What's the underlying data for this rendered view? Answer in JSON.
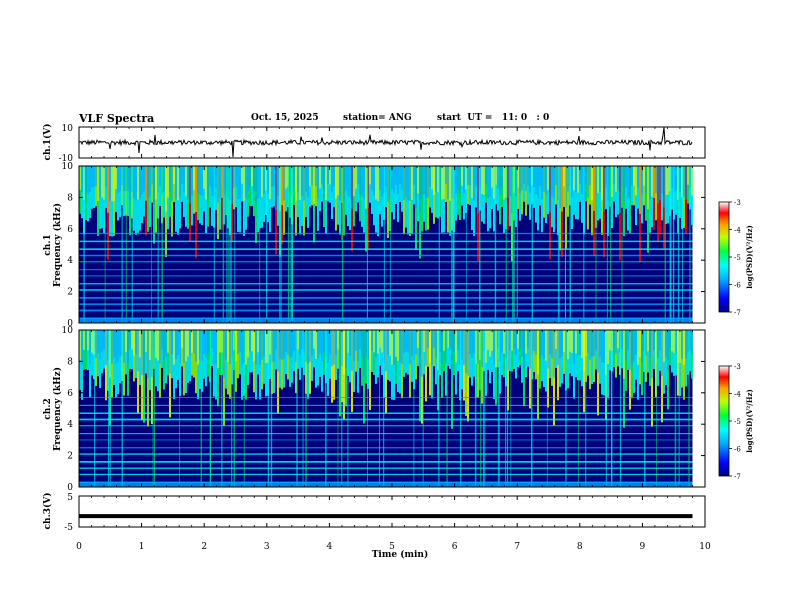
{
  "header": {
    "title": "VLF Spectra",
    "date": "Oct. 15, 2025",
    "station": "station= ANG",
    "start_ut": "start  UT =   11: 0   : 0"
  },
  "chart_data": [
    {
      "type": "line",
      "name": "ch1-waveform",
      "ylabel": "ch.1(V)",
      "ylim": [
        -10,
        10
      ],
      "yticks": [
        "10",
        "-10"
      ],
      "xlim": [
        0,
        10
      ],
      "description_values": {
        "baseline": 0,
        "noise_amplitude": 1.5
      }
    },
    {
      "type": "heatmap",
      "name": "ch1-spectrogram",
      "ylabel": "ch.1\nFrequency  (kHz)",
      "ylabel_lines": [
        "ch.1",
        "Frequency  (kHz)"
      ],
      "ylim": [
        0,
        10
      ],
      "yticks": [
        "0",
        "2",
        "4",
        "6",
        "8",
        "10"
      ],
      "xlim": [
        0,
        9.8
      ],
      "colorbar": {
        "label": "log(PSD)(V²/Hz)",
        "ticks": [
          "-3",
          "-4",
          "-5",
          "-6",
          "-7"
        ],
        "range": [
          -7,
          -3
        ]
      }
    },
    {
      "type": "heatmap",
      "name": "ch2-spectrogram",
      "ylabel": "ch.2\nFrequency  (kHz)",
      "ylabel_lines": [
        "ch.2",
        "Frequency  (kHz)"
      ],
      "ylim": [
        0,
        10
      ],
      "yticks": [
        "0",
        "2",
        "4",
        "6",
        "8",
        "10"
      ],
      "xlim": [
        0,
        9.8
      ],
      "colorbar": {
        "label": "log(PSD)(V²/Hz)",
        "ticks": [
          "-3",
          "-4",
          "-5",
          "-6",
          "-7"
        ],
        "range": [
          -7,
          -3
        ]
      }
    },
    {
      "type": "line",
      "name": "ch3-waveform",
      "ylabel": "ch.3(V)",
      "ylim": [
        -5,
        5
      ],
      "yticks": [
        "5",
        "-5"
      ],
      "x": [
        0,
        9.8
      ],
      "y": [
        -1.5,
        -1.5
      ]
    }
  ],
  "xaxis": {
    "label": "Time  (min)",
    "ticks": [
      "0",
      "1",
      "2",
      "3",
      "4",
      "5",
      "6",
      "7",
      "8",
      "9",
      "10"
    ],
    "range": [
      0,
      10
    ]
  },
  "colors": {
    "cmap": [
      "#000080",
      "#0000ff",
      "#00a0ff",
      "#00ffff",
      "#00ff60",
      "#a0ff00",
      "#ffff00",
      "#ff8000",
      "#ff0000",
      "#ff00ff"
    ]
  }
}
